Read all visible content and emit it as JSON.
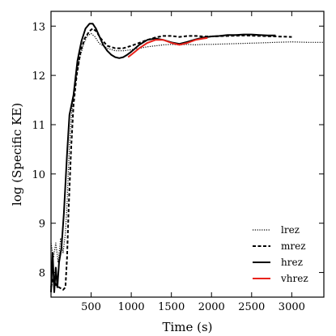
{
  "chart_data": {
    "type": "line",
    "title": "",
    "xlabel": "Time (s)",
    "ylabel": "log (Specific KE)",
    "xlim": [
      0,
      3400
    ],
    "ylim": [
      7.5,
      13.3
    ],
    "xticks": [
      500,
      1000,
      1500,
      2000,
      2500,
      3000
    ],
    "yticks": [
      8,
      9,
      10,
      11,
      12,
      13
    ],
    "grid": false,
    "legend": "bottom-right",
    "series": [
      {
        "name": "lrez",
        "color": "#000000",
        "style": "dotted",
        "x": [
          0,
          30,
          60,
          90,
          120,
          150,
          180,
          200,
          230,
          260,
          300,
          350,
          400,
          450,
          500,
          550,
          600,
          700,
          800,
          900,
          1000,
          1100,
          1200,
          1300,
          1400,
          1500,
          1600,
          1700,
          1800,
          1900,
          2000,
          2200,
          2400,
          2600,
          2800,
          3000,
          3200,
          3400
        ],
        "y": [
          8.6,
          8.3,
          8.6,
          8.2,
          8.7,
          8.4,
          8.8,
          9.4,
          10.6,
          11.3,
          11.8,
          12.3,
          12.6,
          12.8,
          12.85,
          12.78,
          12.65,
          12.55,
          12.5,
          12.5,
          12.52,
          12.55,
          12.58,
          12.6,
          12.62,
          12.63,
          12.62,
          12.63,
          12.62,
          12.63,
          12.63,
          12.64,
          12.65,
          12.66,
          12.67,
          12.68,
          12.67,
          12.67
        ]
      },
      {
        "name": "mrez",
        "color": "#000000",
        "style": "dashed",
        "x": [
          0,
          30,
          60,
          100,
          150,
          180,
          200,
          220,
          250,
          280,
          320,
          370,
          420,
          480,
          520,
          560,
          620,
          700,
          800,
          900,
          1000,
          1100,
          1200,
          1300,
          1400,
          1500,
          1600,
          1700,
          1800,
          1900,
          2000,
          2200,
          2400,
          2600,
          2800,
          3000
        ],
        "y": [
          7.7,
          7.9,
          7.75,
          7.7,
          7.65,
          7.7,
          8.3,
          9.3,
          10.5,
          11.4,
          12.0,
          12.5,
          12.75,
          12.9,
          12.95,
          12.9,
          12.75,
          12.6,
          12.55,
          12.55,
          12.6,
          12.66,
          12.72,
          12.77,
          12.8,
          12.8,
          12.78,
          12.8,
          12.8,
          12.79,
          12.79,
          12.8,
          12.81,
          12.8,
          12.79,
          12.78
        ]
      },
      {
        "name": "hrez",
        "color": "#000000",
        "style": "solid",
        "x": [
          0,
          20,
          40,
          60,
          80,
          100,
          130,
          160,
          200,
          230,
          280,
          330,
          380,
          430,
          480,
          520,
          560,
          600,
          650,
          700,
          750,
          800,
          850,
          900,
          950,
          1000,
          1100,
          1200,
          1300,
          1400,
          1500,
          1600,
          1700,
          1800,
          1900,
          2000,
          2100,
          2200,
          2300,
          2400,
          2500,
          2600,
          2700,
          2800
        ],
        "y": [
          7.6,
          8.4,
          7.6,
          8.1,
          7.7,
          8.2,
          8.5,
          9.2,
          10.4,
          11.2,
          11.6,
          12.3,
          12.7,
          12.95,
          13.05,
          13.05,
          12.95,
          12.8,
          12.62,
          12.5,
          12.42,
          12.37,
          12.35,
          12.37,
          12.42,
          12.48,
          12.62,
          12.72,
          12.75,
          12.72,
          12.67,
          12.64,
          12.68,
          12.73,
          12.77,
          12.79,
          12.8,
          12.82,
          12.82,
          12.83,
          12.83,
          12.82,
          12.81,
          12.81
        ]
      },
      {
        "name": "vhrez",
        "color": "#e8221b",
        "style": "solid",
        "x": [
          960,
          1000,
          1100,
          1200,
          1300,
          1400,
          1500,
          1600,
          1700,
          1800,
          1900,
          1950
        ],
        "y": [
          12.37,
          12.42,
          12.55,
          12.66,
          12.72,
          12.72,
          12.66,
          12.62,
          12.66,
          12.72,
          12.75,
          12.76
        ]
      }
    ]
  }
}
